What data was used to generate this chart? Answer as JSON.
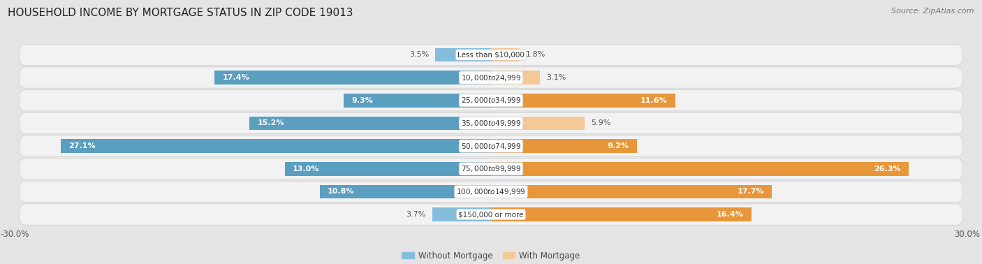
{
  "title": "HOUSEHOLD INCOME BY MORTGAGE STATUS IN ZIP CODE 19013",
  "source": "Source: ZipAtlas.com",
  "categories": [
    "Less than $10,000",
    "$10,000 to $24,999",
    "$25,000 to $34,999",
    "$35,000 to $49,999",
    "$50,000 to $74,999",
    "$75,000 to $99,999",
    "$100,000 to $149,999",
    "$150,000 or more"
  ],
  "without_mortgage": [
    3.5,
    17.4,
    9.3,
    15.2,
    27.1,
    13.0,
    10.8,
    3.7
  ],
  "with_mortgage": [
    1.8,
    3.1,
    11.6,
    5.9,
    9.2,
    26.3,
    17.7,
    16.4
  ],
  "blue_color": "#85BEDD",
  "blue_dark_color": "#5A9EC0",
  "orange_color": "#F5C898",
  "orange_dark_color": "#E8963A",
  "bg_color": "#E4E4E4",
  "panel_color": "#F2F2F2",
  "panel_border_color": "#D0D0D0",
  "xlim": 30.0,
  "legend_without": "Without Mortgage",
  "legend_with": "With Mortgage",
  "title_fontsize": 11,
  "source_fontsize": 8,
  "label_fontsize": 8,
  "category_fontsize": 7.5,
  "bar_height": 0.6,
  "inside_label_threshold": 8.0
}
